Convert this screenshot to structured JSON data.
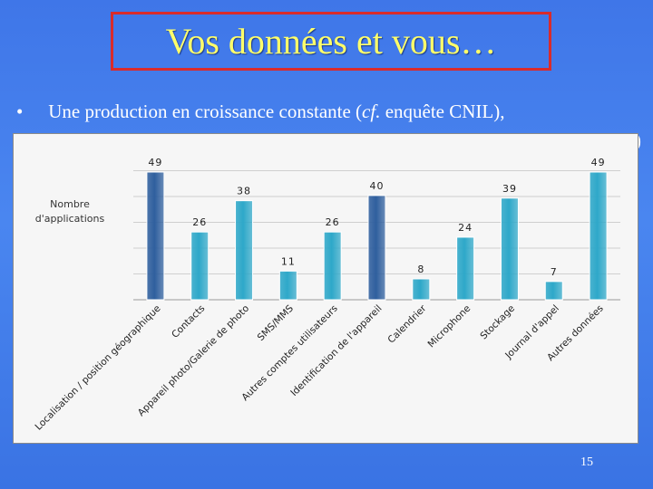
{
  "slide": {
    "title": "Vos données et vous…",
    "bullet_symbol": "•",
    "bullet_pre": "Une production en croissance constante (",
    "bullet_italic": "cf.",
    "bullet_post": " enquête CNIL),",
    "line2_tail": ")",
    "slide_number": "15"
  },
  "colors": {
    "bar_dark": "#2f5f9e",
    "bar_light": "#2ea8c9",
    "background": "#3f76e8",
    "title": "#ffff6a",
    "title_border": "#d92b2b"
  },
  "chart_data": {
    "type": "bar",
    "ylabel": "Nombre\nd'applications",
    "ylim": [
      0,
      55
    ],
    "grid": true,
    "categories": [
      "Localisation / position géographique",
      "Contacts",
      "Appareil photo/Galerie de photo",
      "SMS/MMS",
      "Autres comptes utilisateurs",
      "Identification de l'appareil",
      "Calendrier",
      "Microphone",
      "Stockage",
      "Journal d'appel",
      "Autres données"
    ],
    "values": [
      49,
      26,
      38,
      11,
      26,
      40,
      8,
      24,
      39,
      7,
      49
    ],
    "highlight": [
      true,
      false,
      false,
      false,
      false,
      true,
      false,
      false,
      false,
      false,
      false
    ]
  }
}
